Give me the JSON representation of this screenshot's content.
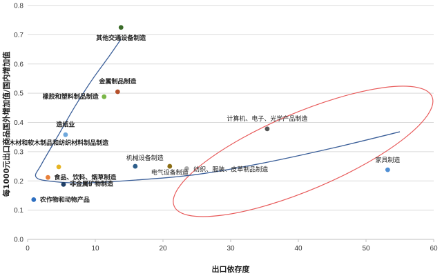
{
  "chart_data": {
    "type": "scatter",
    "title": "",
    "xlabel": "出口依存度",
    "ylabel": "每1000元出口商品国外增加值/国内增加值",
    "xlim": [
      0,
      60
    ],
    "ylim": [
      0,
      0.8
    ],
    "x_ticks": [
      0,
      10,
      20,
      30,
      40,
      50,
      60
    ],
    "y_ticks": [
      "0.0",
      "0.1",
      "0.2",
      "0.3",
      "0.4",
      "0.5",
      "0.6",
      "0.7",
      "0.8"
    ],
    "grid": "horizontal",
    "points": [
      {
        "label": "其他交通设备制造",
        "x": 13.8,
        "y": 0.725,
        "color": "#3a6b28"
      },
      {
        "label": "金属制品制造",
        "x": 13.3,
        "y": 0.505,
        "color": "#b5502a"
      },
      {
        "label": "橡胶和塑料制品制造",
        "x": 11.3,
        "y": 0.488,
        "color": "#7ab648"
      },
      {
        "label": "计算机、电子、光学产品制造",
        "x": 35.4,
        "y": 0.378,
        "color": "#555555"
      },
      {
        "label": "造纸业",
        "x": 5.6,
        "y": 0.358,
        "color": "#6fa8dc"
      },
      {
        "label": "木材和软木制品和纺织材料制品制造",
        "x": 4.6,
        "y": 0.248,
        "color": "#e6b422"
      },
      {
        "label": "机械设备制造",
        "x": 15.9,
        "y": 0.25,
        "color": "#2c5d8a"
      },
      {
        "label": "电气设备制造",
        "x": 21.0,
        "y": 0.25,
        "color": "#8b6d14"
      },
      {
        "label": "纺织、服装、皮革制品制造",
        "x": 23.5,
        "y": 0.242,
        "color": "#aaaaaa"
      },
      {
        "label": "家具制造",
        "x": 53.2,
        "y": 0.238,
        "color": "#4f8fd4"
      },
      {
        "label": "食品、饮料、烟草制造",
        "x": 3.0,
        "y": 0.212,
        "color": "#e8803a"
      },
      {
        "label": "非金属矿物制造",
        "x": 5.3,
        "y": 0.188,
        "color": "#1f3f66"
      },
      {
        "label": "农作物和动物产品",
        "x": 0.9,
        "y": 0.136,
        "color": "#2e6fc1"
      }
    ],
    "trend_curve": [
      [
        13.8,
        0.685
      ],
      [
        12.0,
        0.625
      ],
      [
        9.5,
        0.545
      ],
      [
        7.0,
        0.455
      ],
      [
        4.5,
        0.355
      ],
      [
        2.0,
        0.255
      ],
      [
        1.2,
        0.215
      ],
      [
        3.0,
        0.2
      ],
      [
        8.0,
        0.193
      ],
      [
        16.0,
        0.203
      ],
      [
        25.0,
        0.222
      ],
      [
        35.0,
        0.262
      ],
      [
        45.0,
        0.312
      ],
      [
        55.0,
        0.368
      ]
    ],
    "trend_color": "#3b5f99",
    "highlight_ellipse": {
      "cx": 40.7,
      "cy": 0.301,
      "rx": 20.7,
      "ry": 0.132,
      "angle_deg": -23,
      "color": "#e85b5b"
    }
  }
}
